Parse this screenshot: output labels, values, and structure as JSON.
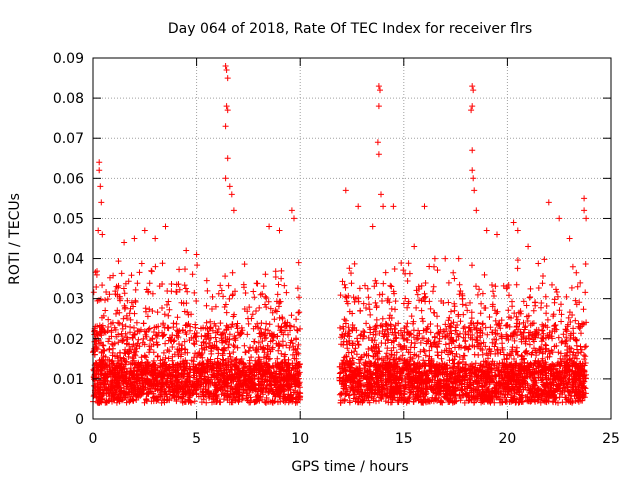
{
  "chart_data": {
    "type": "scatter",
    "title": "Day 064 of 2018, Rate Of TEC Index for receiver flrs",
    "xlabel": "GPS time / hours",
    "ylabel": "ROTI / TECUs",
    "xlim": [
      0,
      25
    ],
    "ylim": [
      0,
      0.09
    ],
    "x_ticks": [
      0,
      5,
      10,
      15,
      20,
      25
    ],
    "y_ticks": [
      0,
      0.01,
      0.02,
      0.03,
      0.04,
      0.05,
      0.06,
      0.07,
      0.08,
      0.09
    ],
    "x_tick_labels": [
      "0",
      "5",
      "10",
      "15",
      "20",
      "25"
    ],
    "y_tick_labels": [
      "0",
      "0.01",
      "0.02",
      "0.03",
      "0.04",
      "0.05",
      "0.06",
      "0.07",
      "0.08",
      "0.09"
    ],
    "grid": true,
    "marker": "+",
    "color": "#ff0000",
    "data_gap_hours": [
      10.0,
      11.9
    ],
    "series": [
      {
        "name": "ROTI",
        "segments": [
          {
            "start": 0.0,
            "end": 10.0
          },
          {
            "start": 11.9,
            "end": 23.8
          }
        ],
        "points": [
          [
            0.3,
            0.064
          ],
          [
            0.3,
            0.062
          ],
          [
            0.35,
            0.058
          ],
          [
            0.4,
            0.054
          ],
          [
            0.25,
            0.047
          ],
          [
            0.45,
            0.046
          ],
          [
            1.5,
            0.044
          ],
          [
            2.0,
            0.045
          ],
          [
            2.5,
            0.047
          ],
          [
            3.0,
            0.045
          ],
          [
            3.5,
            0.048
          ],
          [
            4.5,
            0.042
          ],
          [
            5.0,
            0.041
          ],
          [
            6.4,
            0.088
          ],
          [
            6.45,
            0.087
          ],
          [
            6.5,
            0.085
          ],
          [
            6.45,
            0.078
          ],
          [
            6.5,
            0.077
          ],
          [
            6.4,
            0.073
          ],
          [
            6.5,
            0.065
          ],
          [
            6.4,
            0.06
          ],
          [
            6.6,
            0.058
          ],
          [
            6.7,
            0.056
          ],
          [
            6.8,
            0.052
          ],
          [
            8.5,
            0.048
          ],
          [
            9.0,
            0.047
          ],
          [
            9.6,
            0.052
          ],
          [
            9.7,
            0.05
          ],
          [
            12.2,
            0.057
          ],
          [
            12.8,
            0.053
          ],
          [
            13.5,
            0.048
          ],
          [
            13.8,
            0.083
          ],
          [
            13.85,
            0.082
          ],
          [
            13.8,
            0.078
          ],
          [
            13.75,
            0.069
          ],
          [
            13.8,
            0.066
          ],
          [
            13.9,
            0.056
          ],
          [
            14.0,
            0.053
          ],
          [
            14.5,
            0.053
          ],
          [
            15.5,
            0.043
          ],
          [
            16.0,
            0.053
          ],
          [
            16.5,
            0.04
          ],
          [
            17.0,
            0.04
          ],
          [
            18.3,
            0.083
          ],
          [
            18.35,
            0.082
          ],
          [
            18.3,
            0.078
          ],
          [
            18.25,
            0.077
          ],
          [
            18.3,
            0.067
          ],
          [
            18.3,
            0.062
          ],
          [
            18.35,
            0.06
          ],
          [
            18.4,
            0.057
          ],
          [
            18.5,
            0.052
          ],
          [
            19.0,
            0.047
          ],
          [
            19.5,
            0.046
          ],
          [
            20.3,
            0.049
          ],
          [
            20.5,
            0.047
          ],
          [
            21.0,
            0.043
          ],
          [
            22.0,
            0.054
          ],
          [
            22.5,
            0.05
          ],
          [
            23.0,
            0.045
          ],
          [
            23.7,
            0.055
          ],
          [
            23.7,
            0.052
          ],
          [
            23.8,
            0.05
          ]
        ]
      }
    ]
  }
}
